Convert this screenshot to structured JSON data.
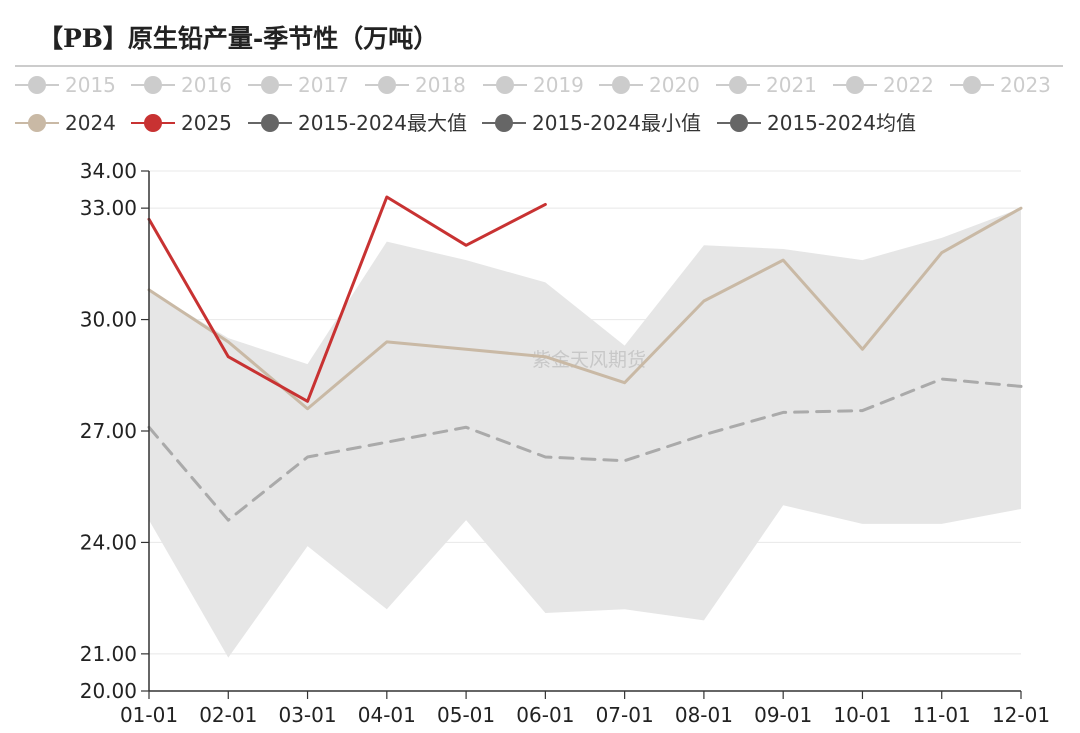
{
  "chart_data": {
    "type": "line",
    "title": "【PB】原生铅产量-季节性（万吨）",
    "watermark": "紫金天风期货",
    "categories": [
      "01-01",
      "02-01",
      "03-01",
      "04-01",
      "05-01",
      "06-01",
      "07-01",
      "08-01",
      "09-01",
      "10-01",
      "11-01",
      "12-01"
    ],
    "y_ticks": [
      "20.00",
      "21.00",
      "24.00",
      "27.00",
      "30.00",
      "33.00",
      "34.00"
    ],
    "ylim": [
      20,
      34
    ],
    "legend_position": "top",
    "legend": [
      {
        "label": "2015",
        "color": "#cccccc"
      },
      {
        "label": "2016",
        "color": "#cccccc"
      },
      {
        "label": "2017",
        "color": "#cccccc"
      },
      {
        "label": "2018",
        "color": "#cccccc"
      },
      {
        "label": "2019",
        "color": "#cccccc"
      },
      {
        "label": "2020",
        "color": "#cccccc"
      },
      {
        "label": "2021",
        "color": "#cccccc"
      },
      {
        "label": "2022",
        "color": "#cccccc"
      },
      {
        "label": "2023",
        "color": "#cccccc"
      },
      {
        "label": "2024",
        "color": "#c9b9a5"
      },
      {
        "label": "2025",
        "color": "#c83232"
      },
      {
        "label": "2015-2024最大值",
        "color": "#666666"
      },
      {
        "label": "2015-2024最小值",
        "color": "#666666"
      },
      {
        "label": "2015-2024均值",
        "color": "#666666"
      }
    ],
    "series": [
      {
        "name": "2015-2024最大值",
        "color": "#e6e6e6",
        "values": [
          30.8,
          29.5,
          28.8,
          32.1,
          31.6,
          31.0,
          29.3,
          32.0,
          31.9,
          31.6,
          32.2,
          33.0
        ]
      },
      {
        "name": "2015-2024最小值",
        "color": "#e6e6e6",
        "values": [
          24.6,
          20.9,
          23.9,
          22.2,
          24.6,
          22.1,
          22.2,
          21.9,
          25.0,
          24.5,
          24.5,
          24.9
        ]
      },
      {
        "name": "2015-2024均值",
        "color": "#aaaaaa",
        "values": [
          27.1,
          24.6,
          26.3,
          26.7,
          27.1,
          26.3,
          26.2,
          26.9,
          27.5,
          27.55,
          28.4,
          28.2
        ]
      },
      {
        "name": "2024",
        "color": "#c9b9a5",
        "values": [
          30.8,
          29.4,
          27.6,
          29.4,
          29.2,
          29.0,
          28.3,
          30.5,
          31.6,
          29.2,
          31.8,
          33.0
        ]
      },
      {
        "name": "2025",
        "color": "#c83232",
        "values": [
          32.7,
          29.0,
          27.8,
          33.3,
          32.0,
          33.1,
          null,
          null,
          null,
          null,
          null,
          null
        ]
      }
    ]
  }
}
